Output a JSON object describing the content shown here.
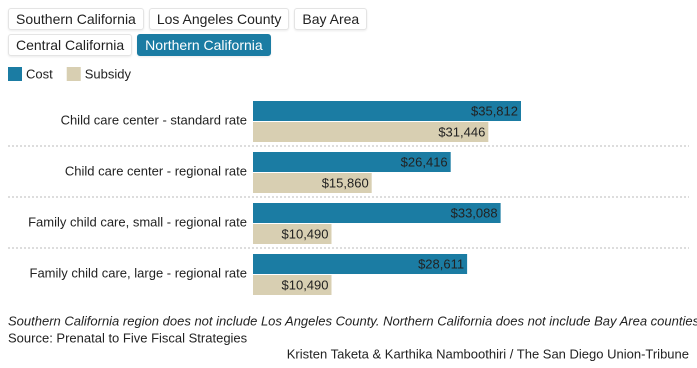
{
  "tabs": {
    "labels": [
      "Southern California",
      "Los Angeles County",
      "Bay Area",
      "Central California",
      "Northern California"
    ],
    "selected": 4
  },
  "chart_data": {
    "type": "bar",
    "orientation": "horizontal",
    "categories": [
      "Child care center - standard rate",
      "Child care center - regional rate",
      "Family child care, small - regional rate",
      "Family child care, large - regional rate"
    ],
    "series": [
      {
        "name": "Cost",
        "color": "#1b7ca3",
        "values": [
          35812,
          26416,
          33088,
          28611
        ],
        "value_labels": [
          "$35,812",
          "$26,416",
          "$33,088",
          "$28,611"
        ]
      },
      {
        "name": "Subsidy",
        "color": "#d8cfb2",
        "values": [
          31446,
          15860,
          10490,
          10490
        ],
        "value_labels": [
          "$31,446",
          "$15,860",
          "$10,490",
          "$10,490"
        ]
      }
    ],
    "legend": "top-left",
    "footnote": "Southern California region does not include Los Angeles County. Northern California does not include Bay Area counties.",
    "source": "Source: Prenatal to Five Fiscal Strategies",
    "credit": "Kristen Taketa & Karthika Namboothiri / The San Diego Union-Tribune"
  }
}
